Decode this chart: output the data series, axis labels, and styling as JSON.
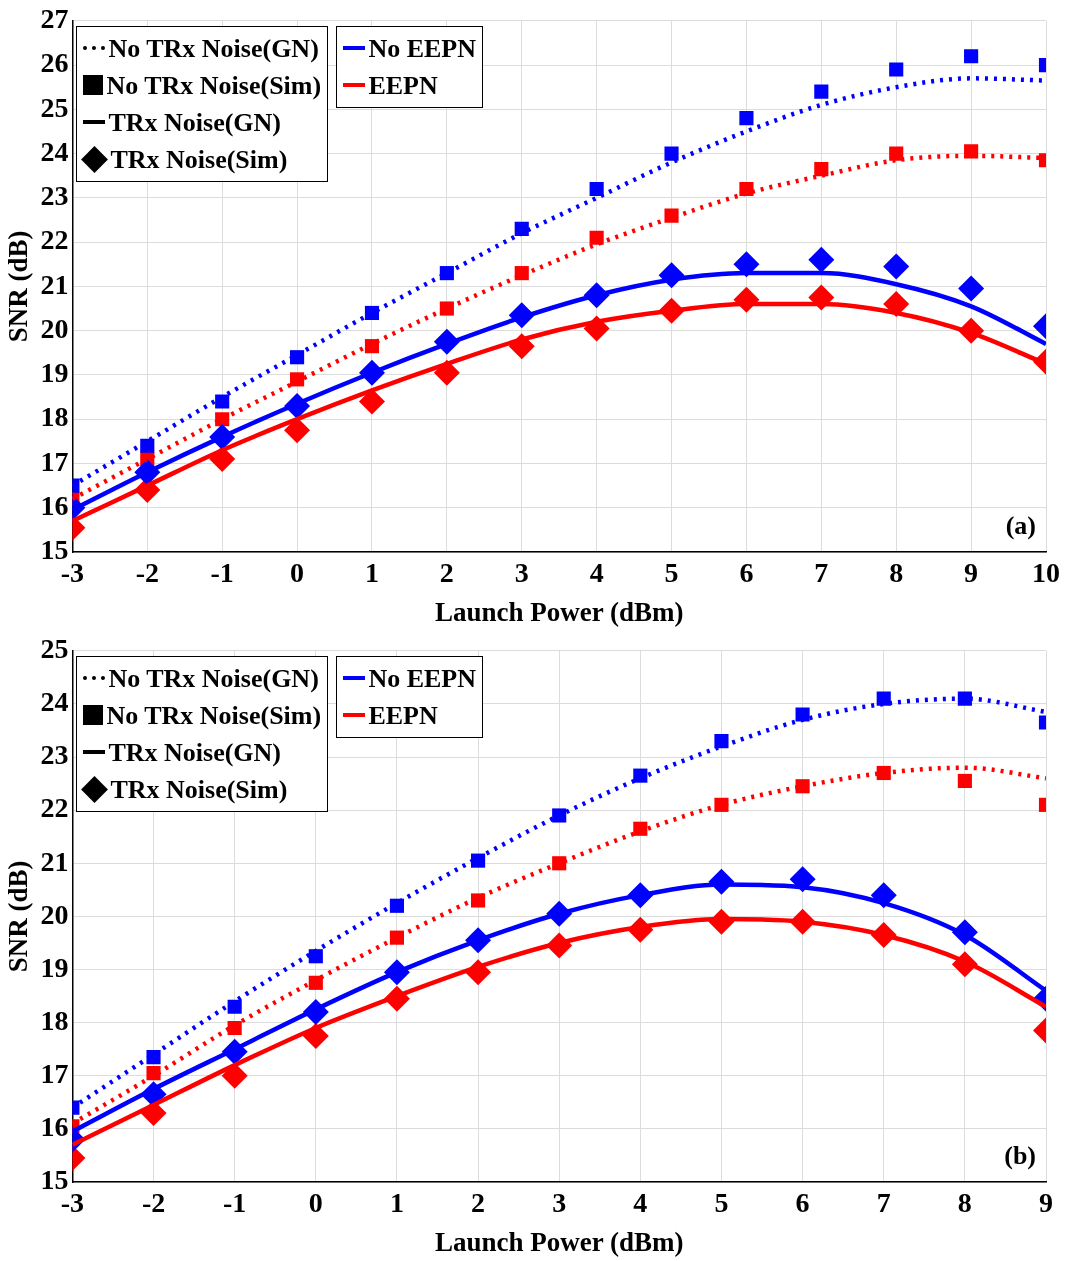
{
  "chart_data": [
    {
      "type": "line",
      "xlabel": "Launch Power (dBm)",
      "ylabel": "SNR (dB)",
      "xlim": [
        -3,
        10
      ],
      "xticks": [
        -3,
        -2,
        -1,
        0,
        1,
        2,
        3,
        4,
        5,
        6,
        7,
        8,
        9,
        10
      ],
      "ylim": [
        15,
        27
      ],
      "yticks": [
        15,
        16,
        17,
        18,
        19,
        20,
        21,
        22,
        23,
        24,
        25,
        26,
        27
      ],
      "grid": true,
      "annotations": [
        "No TRx Noise(GN)",
        "No TRx Noise(Sim)",
        "TRx Noise(GN)",
        "TRx Noise(Sim)",
        "No EEPN",
        "EEPN",
        "(a)"
      ],
      "x": [
        -3,
        -2,
        -1,
        0,
        1,
        2,
        3,
        4,
        5,
        6,
        7,
        8,
        9,
        10
      ],
      "series": [
        {
          "color": "#0000ff",
          "line_style": "dotted",
          "marker": "none",
          "values": [
            16.5,
            17.5,
            18.5,
            19.45,
            20.4,
            21.3,
            22.2,
            23.0,
            23.8,
            24.5,
            25.1,
            25.5,
            25.7,
            25.65
          ]
        },
        {
          "type": "scatter",
          "color": "#0000ff",
          "marker": "square",
          "values": [
            16.5,
            17.4,
            18.4,
            19.4,
            20.4,
            21.3,
            22.3,
            23.2,
            24.0,
            24.8,
            25.4,
            25.9,
            26.2,
            26.0
          ]
        },
        {
          "color": "#0000ff",
          "line_style": "solid",
          "marker": "none",
          "values": [
            15.95,
            16.8,
            17.6,
            18.35,
            19.05,
            19.7,
            20.3,
            20.8,
            21.15,
            21.3,
            21.3,
            21.05,
            20.55,
            19.7
          ]
        },
        {
          "type": "scatter",
          "color": "#0000ff",
          "marker": "diamond",
          "values": [
            16.0,
            16.8,
            17.6,
            18.3,
            19.05,
            19.75,
            20.35,
            20.8,
            21.25,
            21.5,
            21.6,
            21.45,
            20.95,
            20.1
          ]
        },
        {
          "color": "#ff0000",
          "line_style": "dotted",
          "marker": "none",
          "values": [
            16.2,
            17.1,
            18.0,
            18.85,
            19.7,
            20.5,
            21.25,
            21.95,
            22.55,
            23.1,
            23.5,
            23.85,
            23.95,
            23.9
          ]
        },
        {
          "type": "scatter",
          "color": "#ff0000",
          "marker": "square",
          "values": [
            16.2,
            17.1,
            18.0,
            18.9,
            19.65,
            20.5,
            21.3,
            22.1,
            22.6,
            23.2,
            23.65,
            24.0,
            24.05,
            23.85
          ]
        },
        {
          "color": "#ff0000",
          "line_style": "solid",
          "marker": "none",
          "values": [
            15.7,
            16.5,
            17.3,
            18.0,
            18.65,
            19.25,
            19.8,
            20.2,
            20.45,
            20.6,
            20.6,
            20.4,
            19.95,
            19.25
          ]
        },
        {
          "type": "scatter",
          "color": "#ff0000",
          "marker": "diamond",
          "values": [
            15.55,
            16.4,
            17.1,
            17.75,
            18.4,
            19.05,
            19.65,
            20.05,
            20.45,
            20.7,
            20.75,
            20.6,
            20.0,
            19.3
          ]
        }
      ]
    },
    {
      "type": "line",
      "xlabel": "Launch Power (dBm)",
      "ylabel": "SNR (dB)",
      "xlim": [
        -3,
        9
      ],
      "xticks": [
        -3,
        -2,
        -1,
        0,
        1,
        2,
        3,
        4,
        5,
        6,
        7,
        8,
        9
      ],
      "ylim": [
        15,
        25
      ],
      "yticks": [
        15,
        16,
        17,
        18,
        19,
        20,
        21,
        22,
        23,
        24,
        25
      ],
      "grid": true,
      "annotations": [
        "No TRx Noise(GN)",
        "No TRx Noise(Sim)",
        "TRx Noise(GN)",
        "TRx Noise(Sim)",
        "No EEPN",
        "EEPN",
        "(b)"
      ],
      "x": [
        -3,
        -2,
        -1,
        0,
        1,
        2,
        3,
        4,
        5,
        6,
        7,
        8,
        9
      ],
      "series": [
        {
          "color": "#0000ff",
          "line_style": "dotted",
          "marker": "none",
          "values": [
            16.4,
            17.4,
            18.4,
            19.35,
            20.25,
            21.1,
            21.9,
            22.6,
            23.2,
            23.7,
            24.0,
            24.1,
            23.85
          ]
        },
        {
          "type": "scatter",
          "color": "#0000ff",
          "marker": "square",
          "values": [
            16.4,
            17.35,
            18.3,
            19.25,
            20.2,
            21.05,
            21.9,
            22.65,
            23.3,
            23.8,
            24.1,
            24.1,
            23.65
          ]
        },
        {
          "color": "#0000ff",
          "line_style": "solid",
          "marker": "none",
          "values": [
            15.95,
            16.75,
            17.5,
            18.25,
            18.95,
            19.55,
            20.05,
            20.4,
            20.6,
            20.55,
            20.25,
            19.65,
            18.6
          ]
        },
        {
          "type": "scatter",
          "color": "#0000ff",
          "marker": "diamond",
          "values": [
            15.8,
            16.65,
            17.45,
            18.2,
            18.95,
            19.55,
            20.05,
            20.4,
            20.65,
            20.7,
            20.4,
            19.7,
            18.45
          ]
        },
        {
          "color": "#ff0000",
          "line_style": "dotted",
          "marker": "none",
          "values": [
            16.1,
            17.0,
            17.95,
            18.8,
            19.6,
            20.35,
            21.0,
            21.6,
            22.1,
            22.45,
            22.7,
            22.8,
            22.6
          ]
        },
        {
          "type": "scatter",
          "color": "#ff0000",
          "marker": "square",
          "values": [
            16.05,
            17.05,
            17.9,
            18.75,
            19.6,
            20.3,
            21.0,
            21.65,
            22.1,
            22.45,
            22.7,
            22.55,
            22.1
          ]
        },
        {
          "color": "#ff0000",
          "line_style": "solid",
          "marker": "none",
          "values": [
            15.7,
            16.45,
            17.2,
            17.9,
            18.5,
            19.05,
            19.5,
            19.8,
            19.95,
            19.9,
            19.65,
            19.15,
            18.3
          ]
        },
        {
          "type": "scatter",
          "color": "#ff0000",
          "marker": "diamond",
          "values": [
            15.45,
            16.3,
            17.0,
            17.75,
            18.45,
            18.95,
            19.45,
            19.75,
            19.9,
            19.9,
            19.65,
            19.1,
            17.85
          ]
        }
      ]
    }
  ]
}
